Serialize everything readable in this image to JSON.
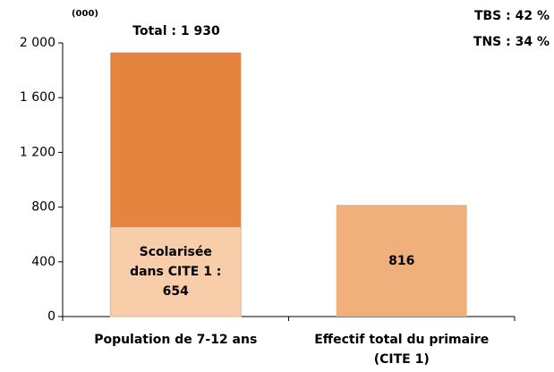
{
  "chart_data": {
    "type": "stacked_bar",
    "y_label": "(000)",
    "annotations": [
      "Total : 1 930",
      "TBS : 42 %",
      "TNS : 34 %"
    ],
    "categories": [
      "Population de 7-12 ans",
      "Effectif total du primaire (CITE 1)"
    ],
    "series": [
      {
        "color": "#f8cdaa",
        "values": [
          654,
          null
        ],
        "value_labels": [
          "Scolarisée dans CITE 1 : 654",
          null
        ]
      },
      {
        "color": "#e5843f",
        "values": [
          1276,
          null
        ]
      },
      {
        "color": "#f0b07c",
        "values": [
          null,
          816
        ]
      }
    ],
    "ylim": [
      0,
      2000
    ],
    "yticks": [
      0,
      400,
      800,
      {
        "value": 1200,
        "label": "1 200"
      },
      {
        "value": 1600,
        "label": "1 600"
      },
      {
        "value": 2000,
        "label": "2 000"
      }
    ],
    "grid": false
  }
}
